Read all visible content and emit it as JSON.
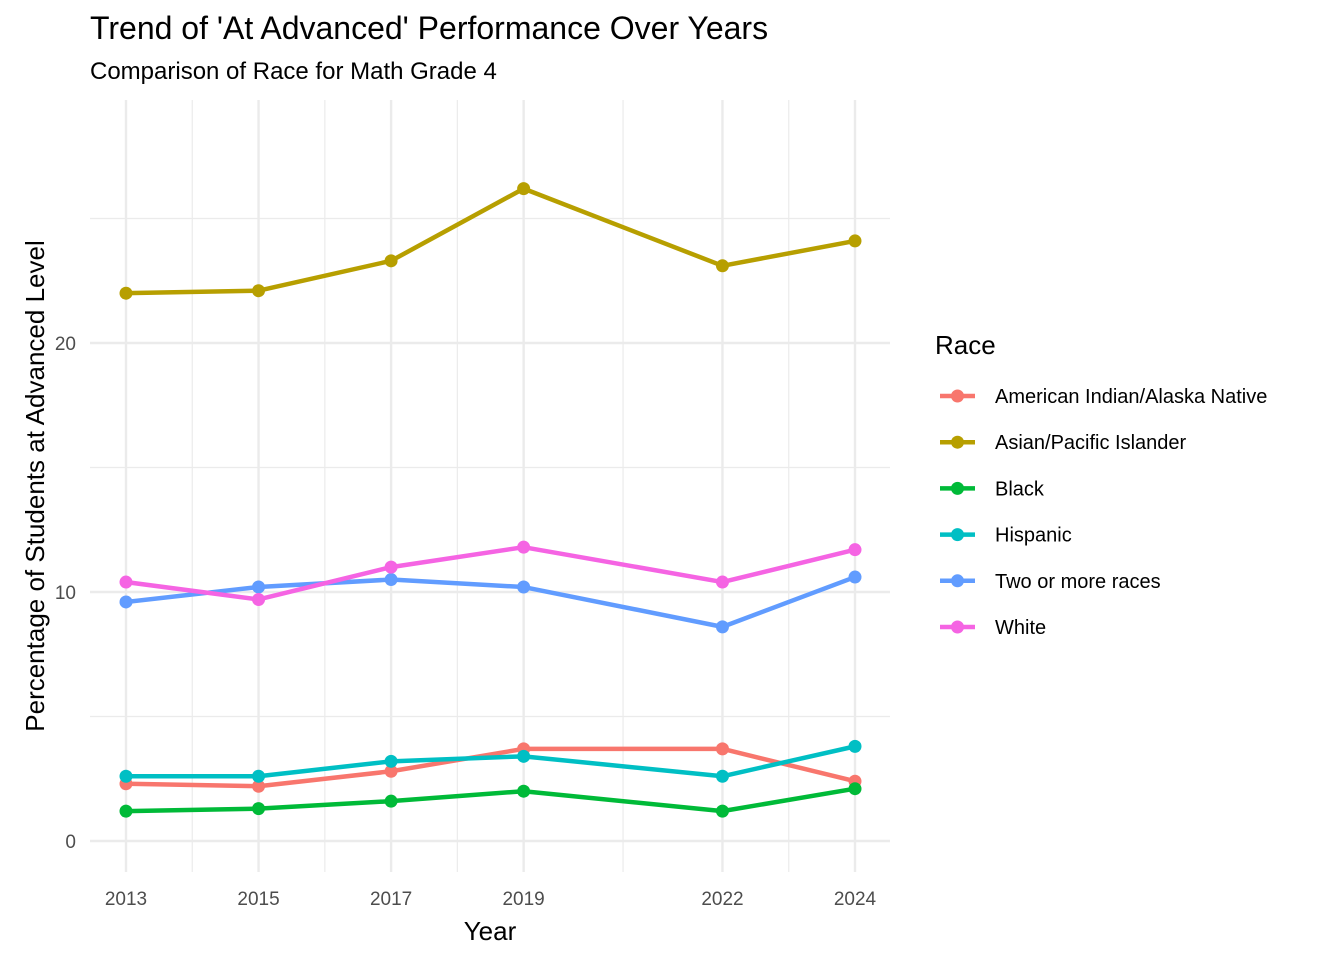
{
  "chart_data": {
    "type": "line",
    "title": "Trend of 'At Advanced' Performance Over Years",
    "subtitle": "Comparison of Race for Math Grade 4",
    "xlabel": "Year",
    "ylabel": "Percentage of Students at Advanced Level",
    "x": [
      2013,
      2015,
      2017,
      2019,
      2022,
      2024
    ],
    "x_tick_labels": [
      "2013",
      "2015",
      "2017",
      "2019",
      "2022",
      "2024"
    ],
    "xlim": [
      2013,
      2024
    ],
    "y_ticks": [
      0,
      10,
      20
    ],
    "y_tick_labels": [
      "0",
      "10",
      "20"
    ],
    "ylim": [
      0,
      28
    ],
    "grid": true,
    "legend_title": "Race",
    "legend_position": "right",
    "series": [
      {
        "name": "American Indian/Alaska Native",
        "color": "#F8766D",
        "values": [
          2.3,
          2.2,
          2.8,
          3.7,
          3.7,
          2.4
        ]
      },
      {
        "name": "Asian/Pacific Islander",
        "color": "#B79F00",
        "values": [
          22.0,
          22.1,
          23.3,
          26.2,
          23.1,
          24.1
        ]
      },
      {
        "name": "Black",
        "color": "#00BA38",
        "values": [
          1.2,
          1.3,
          1.6,
          2.0,
          1.2,
          2.1
        ]
      },
      {
        "name": "Hispanic",
        "color": "#00BFC4",
        "values": [
          2.6,
          2.6,
          3.2,
          3.4,
          2.6,
          3.8
        ]
      },
      {
        "name": "Two or more races",
        "color": "#619CFF",
        "values": [
          9.6,
          10.2,
          10.5,
          10.2,
          8.6,
          10.6
        ]
      },
      {
        "name": "White",
        "color": "#F564E3",
        "values": [
          10.4,
          9.7,
          11.0,
          11.8,
          10.4,
          11.7
        ]
      }
    ]
  }
}
